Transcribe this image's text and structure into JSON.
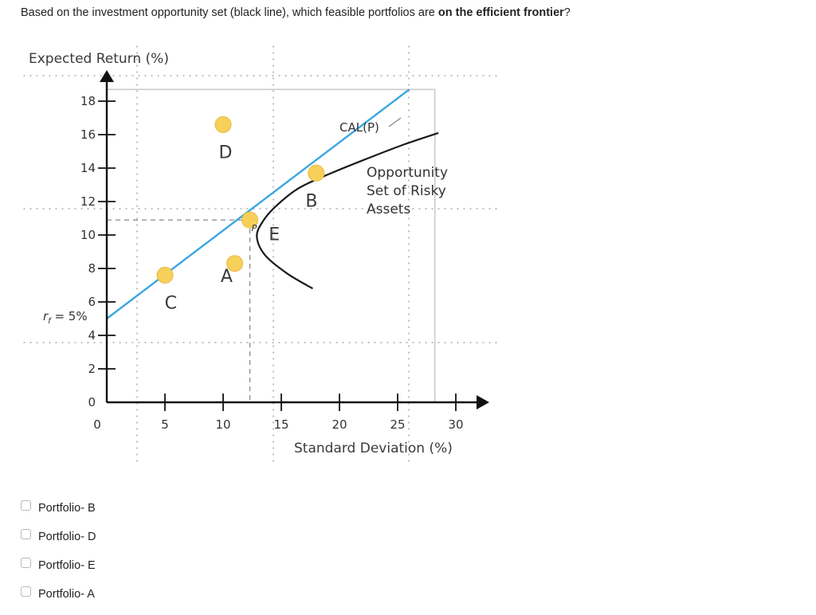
{
  "question": {
    "prefix": "Based on the investment opportunity set (black line), which feasible portfolios are ",
    "bold": "on the efficient frontier",
    "suffix": "?"
  },
  "chart_data": {
    "type": "line",
    "ylabel": "Expected Return (%)",
    "xlabel": "Standard Deviation (%)",
    "xlim": [
      0,
      30
    ],
    "ylim": [
      0,
      19
    ],
    "x_ticks": [
      0,
      5,
      10,
      15,
      20,
      25,
      30
    ],
    "y_ticks": [
      0,
      2,
      4,
      6,
      8,
      10,
      12,
      14,
      16,
      18
    ],
    "rf_label": "r",
    "rf_subscript": "f",
    "rf_value_text": " = 5%",
    "rf": 5,
    "series": [
      {
        "name": "Opportunity Set of Risky Assets",
        "color": "#1a1a1a",
        "points": [
          [
            17.7,
            6.8
          ],
          [
            15.5,
            7.7
          ],
          [
            13.6,
            8.8
          ],
          [
            12.9,
            9.9
          ],
          [
            13.4,
            10.8
          ],
          [
            14.5,
            11.7
          ],
          [
            16.5,
            12.8
          ],
          [
            19.3,
            13.7
          ],
          [
            22.5,
            14.6
          ],
          [
            25.5,
            15.4
          ],
          [
            28.5,
            16.1
          ]
        ]
      },
      {
        "name": "CAL(P)",
        "color": "#3aa6e0",
        "points": [
          [
            0,
            5
          ],
          [
            26,
            18.7
          ]
        ]
      }
    ],
    "portfolios": [
      {
        "label": "C",
        "x": 5,
        "y": 7.6
      },
      {
        "label": "D",
        "x": 10,
        "y": 16.6
      },
      {
        "label": "A",
        "x": 11,
        "y": 8.3
      },
      {
        "label": "P",
        "x": 12.3,
        "y": 10.9
      },
      {
        "label": "B",
        "x": 18,
        "y": 13.7
      }
    ],
    "point_labels": [
      {
        "text": "C",
        "x": 5.5,
        "y": 5.6
      },
      {
        "text": "D",
        "x": 10.2,
        "y": 14.6
      },
      {
        "text": "A",
        "x": 10.3,
        "y": 7.2
      },
      {
        "text": "E",
        "x": 14.4,
        "y": 9.7
      },
      {
        "text": "B",
        "x": 17.6,
        "y": 11.7
      }
    ],
    "annotations": {
      "cal": "CAL(P)",
      "opportunity_lines": [
        "Opportunity",
        "Set of Risky",
        "Assets"
      ]
    },
    "dashed_guides": {
      "x": 12.3,
      "y": 10.9
    },
    "dot_color": "#f7d05a"
  },
  "options": [
    {
      "label": "Portfolio- B"
    },
    {
      "label": "Portfolio- D"
    },
    {
      "label": "Portfolio- E"
    },
    {
      "label": "Portfolio- A"
    }
  ]
}
